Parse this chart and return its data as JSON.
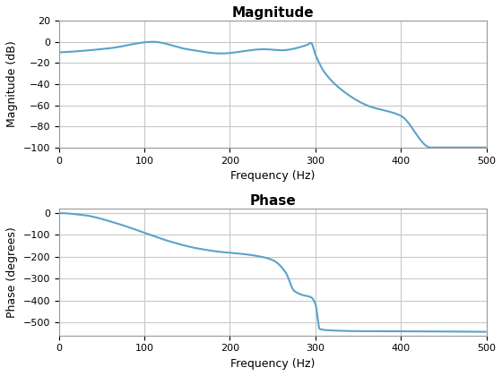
{
  "mag_title": "Magnitude",
  "mag_xlabel": "Frequency (Hz)",
  "mag_ylabel": "Magnitude (dB)",
  "mag_ylim": [
    -100,
    20
  ],
  "mag_yticks": [
    -100,
    -80,
    -60,
    -40,
    -20,
    0,
    20
  ],
  "phase_title": "Phase",
  "phase_xlabel": "Frequency (Hz)",
  "phase_ylabel": "Phase (degrees)",
  "phase_ylim": [
    -560,
    20
  ],
  "phase_yticks": [
    -500,
    -400,
    -300,
    -200,
    -100,
    0
  ],
  "xlim": [
    0,
    500
  ],
  "xticks": [
    0,
    100,
    200,
    300,
    400,
    500
  ],
  "line_color": "#5BA3C9",
  "line_width": 1.5,
  "background_color": "#ffffff",
  "grid_color": "#c8c8c8"
}
